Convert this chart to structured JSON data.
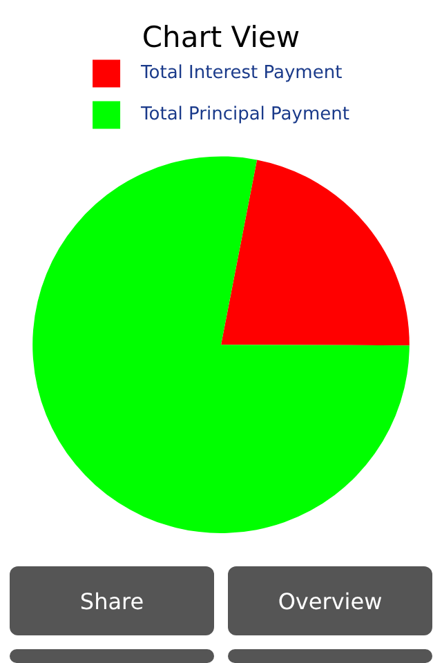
{
  "chart_data": {
    "type": "pie",
    "title": "Chart View",
    "categories": [
      "Total Interest Payment",
      "Total Principal Payment"
    ],
    "values": [
      22,
      78
    ],
    "colors": [
      "#ff0000",
      "#00ff00"
    ],
    "legend": "top",
    "annotations": [
      "Share",
      "Overview"
    ]
  }
}
